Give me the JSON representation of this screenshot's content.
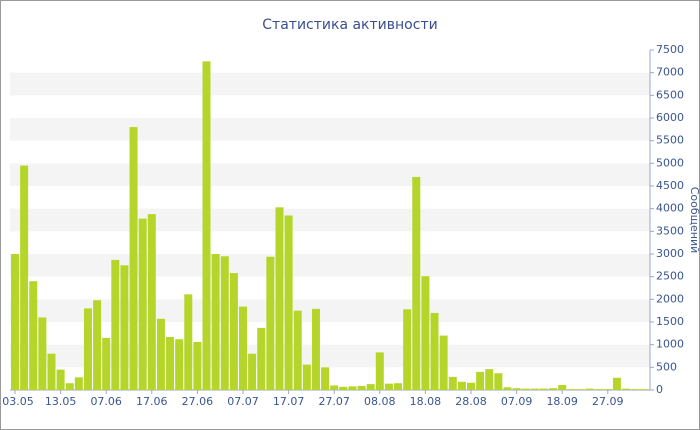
{
  "chart_data": {
    "type": "bar",
    "title": "Статистика активности",
    "y_label": "Сообщений",
    "categories": [
      "03.05",
      null,
      null,
      null,
      null,
      "13.05",
      null,
      null,
      null,
      null,
      "07.06",
      null,
      null,
      null,
      null,
      "17.06",
      null,
      null,
      null,
      null,
      "27.06",
      null,
      null,
      null,
      null,
      "07.07",
      null,
      null,
      null,
      null,
      "17.07",
      null,
      null,
      null,
      null,
      "27.07",
      null,
      null,
      null,
      null,
      "08.08",
      null,
      null,
      null,
      null,
      "18.08",
      null,
      null,
      null,
      null,
      "28.08",
      null,
      null,
      null,
      null,
      "07.09",
      null,
      null,
      null,
      null,
      "18.09",
      null,
      null,
      null,
      null,
      "27.09",
      null,
      null,
      null,
      null
    ],
    "values": [
      3000,
      4950,
      2400,
      1600,
      800,
      450,
      150,
      280,
      1800,
      1980,
      1150,
      2870,
      2750,
      5800,
      3780,
      3880,
      1570,
      1170,
      1120,
      2110,
      1060,
      7250,
      3000,
      2950,
      2580,
      1840,
      800,
      1370,
      2940,
      4030,
      3850,
      1750,
      560,
      1790,
      500,
      100,
      70,
      80,
      90,
      130,
      830,
      140,
      150,
      1780,
      4700,
      2510,
      1700,
      1200,
      290,
      180,
      160,
      400,
      460,
      370,
      60,
      40,
      30,
      30,
      30,
      40,
      110,
      20,
      20,
      30,
      20,
      20,
      270,
      30,
      20,
      20
    ],
    "color": "#b5d52a",
    "ylim": [
      0,
      7500
    ],
    "yticks": [
      0,
      500,
      1000,
      1500,
      2000,
      2500,
      3000,
      3500,
      4000,
      4500,
      5000,
      5500,
      6000,
      6500,
      7000,
      7500
    ],
    "y_axis_side": "right",
    "banded_grid": true
  }
}
